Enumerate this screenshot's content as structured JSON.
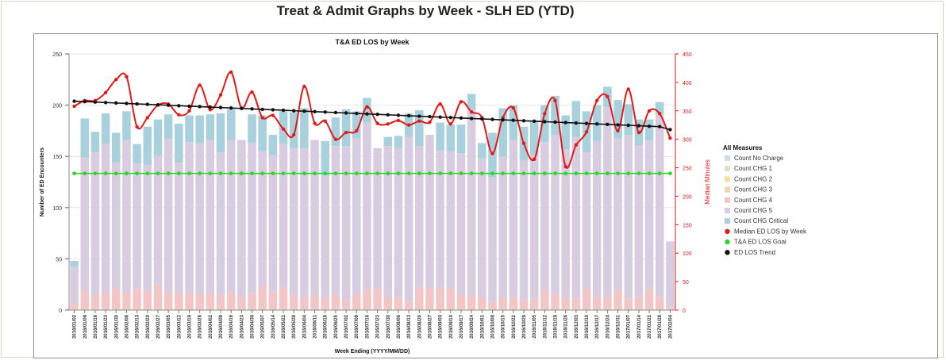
{
  "page": {
    "title": "Treat & Admit Graphs by Week - SLH ED (YTD)"
  },
  "chart_data": {
    "type": "bar",
    "title": "T&A ED LOS by Week",
    "xlabel": "Week Ending (YYYY/MM/DD)",
    "ylabel": "Number of ED Encounters",
    "y2label": "Median Minutes",
    "ylim": [
      0,
      250
    ],
    "y2lim": [
      0,
      450
    ],
    "yticks": [
      0,
      50,
      100,
      150,
      200,
      250
    ],
    "y2ticks": [
      0,
      50,
      100,
      150,
      200,
      250,
      300,
      350,
      400,
      450
    ],
    "grid": true,
    "legend_position": "right",
    "legend_title": "All Measures",
    "categories": [
      "2016/01/02",
      "2016/01/09",
      "2016/01/16",
      "2016/01/23",
      "2016/01/30",
      "2016/02/06",
      "2016/02/13",
      "2016/02/20",
      "2016/02/27",
      "2016/03/05",
      "2016/03/12",
      "2016/03/19",
      "2016/03/26",
      "2016/04/02",
      "2016/04/09",
      "2016/04/16",
      "2016/04/23",
      "2016/04/30",
      "2016/05/07",
      "2016/05/14",
      "2016/05/21",
      "2016/05/28",
      "2016/06/04",
      "2016/06/11",
      "2016/06/18",
      "2016/06/25",
      "2016/07/02",
      "2016/07/09",
      "2016/07/16",
      "2016/07/23",
      "2016/07/30",
      "2016/08/06",
      "2016/08/13",
      "2016/08/20",
      "2016/08/27",
      "2016/09/03",
      "2016/09/10",
      "2016/09/17",
      "2016/09/24",
      "2016/10/01",
      "2016/10/08",
      "2016/10/15",
      "2016/10/22",
      "2016/10/29",
      "2016/11/05",
      "2016/11/12",
      "2016/11/19",
      "2016/11/26",
      "2016/12/03",
      "2016/12/10",
      "2016/12/17",
      "2016/12/24",
      "2016/12/31",
      "2017/01/07",
      "2017/01/14",
      "2017/01/21",
      "2017/01/28",
      "2017/02/04"
    ],
    "bar_series": [
      {
        "name": "Count No Charge",
        "color": "#d0dcea",
        "values": [
          0,
          0,
          0,
          0,
          0,
          0,
          0,
          0,
          0,
          0,
          0,
          0,
          0,
          0,
          0,
          0,
          0,
          0,
          0,
          0,
          0,
          0,
          0,
          0,
          0,
          0,
          0,
          0,
          0,
          0,
          0,
          0,
          0,
          0,
          0,
          0,
          0,
          0,
          0,
          0,
          0,
          0,
          0,
          0,
          0,
          0,
          0,
          0,
          0,
          0,
          0,
          0,
          0,
          0,
          0,
          0,
          0,
          0
        ]
      },
      {
        "name": "Count CHG 1",
        "color": "#d6e4c4",
        "values": [
          0,
          0,
          0,
          0,
          0,
          0,
          0,
          0,
          0,
          0,
          0,
          0,
          0,
          0,
          0,
          0,
          0,
          0,
          0,
          0,
          0,
          0,
          0,
          0,
          0,
          0,
          0,
          0,
          0,
          0,
          0,
          0,
          0,
          0,
          0,
          0,
          0,
          0,
          0,
          0,
          0,
          0,
          0,
          0,
          0,
          0,
          0,
          0,
          0,
          0,
          0,
          0,
          0,
          0,
          0,
          0,
          0,
          0
        ]
      },
      {
        "name": "Count CHG 2",
        "color": "#efe3a6",
        "values": [
          0,
          0,
          0,
          0,
          0,
          0,
          0,
          0,
          0,
          0,
          0,
          0,
          0,
          0,
          0,
          0,
          0,
          0,
          0,
          0,
          0,
          0,
          0,
          0,
          0,
          0,
          0,
          0,
          0,
          0,
          0,
          0,
          0,
          0,
          0,
          0,
          0,
          0,
          0,
          0,
          0,
          0,
          0,
          0,
          0,
          0,
          0,
          0,
          0,
          0,
          0,
          0,
          0,
          0,
          0,
          0,
          0,
          0
        ]
      },
      {
        "name": "Count CHG 3",
        "color": "#f1d4b0",
        "values": [
          1,
          1,
          1,
          1,
          1,
          1,
          1,
          1,
          1,
          1,
          1,
          1,
          1,
          1,
          1,
          1,
          1,
          1,
          1,
          1,
          1,
          1,
          1,
          1,
          1,
          1,
          1,
          1,
          1,
          1,
          1,
          1,
          1,
          1,
          1,
          1,
          1,
          1,
          1,
          1,
          1,
          1,
          1,
          1,
          1,
          1,
          1,
          1,
          1,
          1,
          1,
          1,
          1,
          1,
          1,
          1,
          1,
          1
        ]
      },
      {
        "name": "Count CHG 4",
        "color": "#f2c6c6",
        "values": [
          6,
          18,
          13,
          16,
          21,
          16,
          20,
          18,
          24,
          16,
          15,
          16,
          14,
          15,
          13,
          17,
          12,
          15,
          23,
          17,
          21,
          13,
          11,
          13,
          11,
          14,
          9,
          14,
          19,
          20,
          11,
          12,
          7,
          21,
          20,
          21,
          20,
          14,
          13,
          11,
          7,
          11,
          12,
          8,
          10,
          18,
          15,
          11,
          10,
          20,
          12,
          12,
          18,
          10,
          12,
          19,
          12,
          2
        ]
      },
      {
        "name": "Count CHG 5",
        "color": "#d8cce0",
        "values": [
          35,
          130,
          140,
          145,
          122,
          149,
          122,
          123,
          126,
          150,
          128,
          147,
          148,
          150,
          140,
          148,
          153,
          147,
          131,
          133,
          140,
          144,
          146,
          152,
          119,
          145,
          150,
          153,
          163,
          137,
          148,
          145,
          161,
          138,
          150,
          134,
          134,
          138,
          182,
          136,
          122,
          138,
          153,
          137,
          140,
          145,
          155,
          145,
          158,
          133,
          152,
          185,
          149,
          160,
          148,
          146,
          178,
          64
        ]
      },
      {
        "name": "Count CHG Critical",
        "color": "#a8d1dd",
        "values": [
          6,
          38,
          20,
          30,
          29,
          28,
          19,
          37,
          35,
          24,
          38,
          26,
          27,
          25,
          38,
          30,
          0,
          28,
          35,
          20,
          32,
          35,
          39,
          0,
          34,
          28,
          36,
          26,
          24,
          0,
          9,
          12,
          23,
          35,
          0,
          27,
          26,
          28,
          15,
          15,
          43,
          47,
          34,
          33,
          34,
          36,
          38,
          33,
          35,
          40,
          35,
          20,
          37,
          30,
          25,
          20,
          12,
          0
        ]
      }
    ],
    "line_series": [
      {
        "name": "Median ED LOS by Week",
        "color": "#e21a1a",
        "axis": "right",
        "values": [
          358,
          368,
          368,
          382,
          405,
          410,
          322,
          338,
          360,
          362,
          343,
          350,
          395,
          352,
          378,
          418,
          355,
          383,
          338,
          342,
          318,
          308,
          393,
          328,
          332,
          300,
          312,
          315,
          357,
          328,
          327,
          333,
          325,
          332,
          330,
          362,
          327,
          366,
          348,
          338,
          275,
          338,
          355,
          293,
          265,
          345,
          368,
          252,
          290,
          313,
          368,
          375,
          315,
          388,
          312,
          350,
          345,
          302
        ]
      },
      {
        "name": "T&A ED LOS Goal",
        "color": "#2fd42f",
        "axis": "right",
        "values": [
          240,
          240,
          240,
          240,
          240,
          240,
          240,
          240,
          240,
          240,
          240,
          240,
          240,
          240,
          240,
          240,
          240,
          240,
          240,
          240,
          240,
          240,
          240,
          240,
          240,
          240,
          240,
          240,
          240,
          240,
          240,
          240,
          240,
          240,
          240,
          240,
          240,
          240,
          240,
          240,
          240,
          240,
          240,
          240,
          240,
          240,
          240,
          240,
          240,
          240,
          240,
          240,
          240,
          240,
          240,
          240,
          240,
          240
        ]
      },
      {
        "name": "ED LOS Trend",
        "color": "#111111",
        "axis": "right",
        "values": [
          367.0,
          366.2,
          365.4,
          364.6,
          363.8,
          363.0,
          362.2,
          361.4,
          360.6,
          359.8,
          359.0,
          358.2,
          357.4,
          356.6,
          355.8,
          355.0,
          354.2,
          353.4,
          352.6,
          351.8,
          351.0,
          350.2,
          349.4,
          348.6,
          347.8,
          347.0,
          346.2,
          345.4,
          344.6,
          343.8,
          343.0,
          342.2,
          341.4,
          340.6,
          339.8,
          339.0,
          338.2,
          337.4,
          336.6,
          335.8,
          335.0,
          334.2,
          333.4,
          332.6,
          331.8,
          331.0,
          330.2,
          329.4,
          328.6,
          327.8,
          327.0,
          326.2,
          325.4,
          324.6,
          323.8,
          323.0,
          322.2,
          317.0
        ]
      }
    ]
  }
}
